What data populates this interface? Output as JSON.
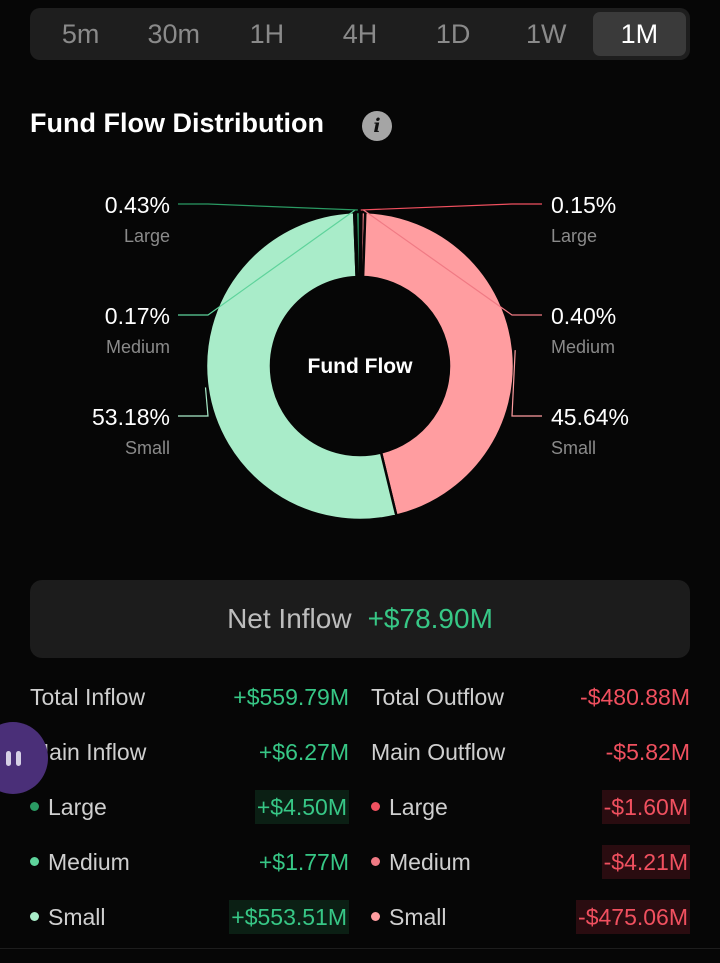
{
  "timeframes": [
    "5m",
    "30m",
    "1H",
    "4H",
    "1D",
    "1W",
    "1M"
  ],
  "active_timeframe": "1M",
  "section": {
    "title": "Fund Flow Distribution",
    "info_icon": "i"
  },
  "chart_data": {
    "type": "pie",
    "center_label": "Fund Flow",
    "slices": [
      {
        "label": "Large",
        "percent": 0.15,
        "display": "0.15%",
        "side": "outflow",
        "color": "#f0505f"
      },
      {
        "label": "Medium",
        "percent": 0.4,
        "display": "0.40%",
        "side": "outflow",
        "color": "#f07a84"
      },
      {
        "label": "Small",
        "percent": 45.64,
        "display": "45.64%",
        "side": "outflow",
        "color": "#ff9da0"
      },
      {
        "label": "Small",
        "percent": 53.18,
        "display": "53.18%",
        "side": "inflow",
        "color": "#a9ecc9"
      },
      {
        "label": "Medium",
        "percent": 0.17,
        "display": "0.17%",
        "side": "inflow",
        "color": "#5ed39b"
      },
      {
        "label": "Large",
        "percent": 0.43,
        "display": "0.43%",
        "side": "inflow",
        "color": "#2a9a63"
      }
    ]
  },
  "net": {
    "label": "Net Inflow",
    "value": "+$78.90M"
  },
  "table": {
    "rows": [
      {
        "left_label": "Total Inflow",
        "left_value": "+$559.79M",
        "right_label": "Total Outflow",
        "right_value": "-$480.88M"
      },
      {
        "left_label": "Main Inflow",
        "left_value": "+$6.27M",
        "right_label": "Main Outflow",
        "right_value": "-$5.82M"
      },
      {
        "left_label": "Large",
        "left_value": "+$4.50M",
        "right_label": "Large",
        "right_value": "-$1.60M"
      },
      {
        "left_label": "Medium",
        "left_value": "+$1.77M",
        "right_label": "Medium",
        "right_value": "-$4.21M"
      },
      {
        "left_label": "Small",
        "left_value": "+$553.51M",
        "right_label": "Small",
        "right_value": "-$475.06M"
      }
    ]
  },
  "colors": {
    "inflow": "#37c786",
    "outflow": "#f0505f",
    "background": "#060606"
  }
}
